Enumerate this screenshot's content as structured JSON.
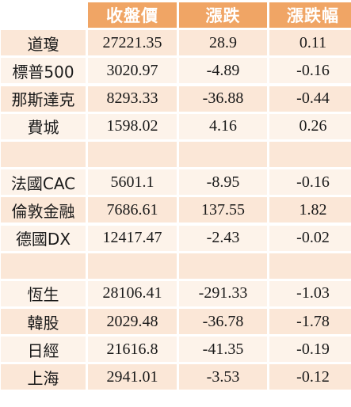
{
  "header": {
    "blank": "",
    "close": "收盤價",
    "change": "漲跌",
    "change_pct": "漲跌幅"
  },
  "rows": [
    {
      "name": "道瓊",
      "close": "27221.35",
      "change": "28.9",
      "pct": "0.11"
    },
    {
      "name": "標普500",
      "close": "3020.97",
      "change": "-4.89",
      "pct": "-0.16"
    },
    {
      "name": "那斯達克",
      "close": "8293.33",
      "change": "-36.88",
      "pct": "-0.44"
    },
    {
      "name": "費城",
      "close": "1598.02",
      "change": "4.16",
      "pct": "0.26"
    },
    {
      "name": "",
      "close": "",
      "change": "",
      "pct": ""
    },
    {
      "name": "法國CAC",
      "close": "5601.1",
      "change": "-8.95",
      "pct": "-0.16"
    },
    {
      "name": "倫敦金融",
      "close": "7686.61",
      "change": "137.55",
      "pct": "1.82"
    },
    {
      "name": "德國DX",
      "close": "12417.47",
      "change": "-2.43",
      "pct": "-0.02"
    },
    {
      "name": "",
      "close": "",
      "change": "",
      "pct": ""
    },
    {
      "name": "恆生",
      "close": "28106.41",
      "change": "-291.33",
      "pct": "-1.03"
    },
    {
      "name": "韓股",
      "close": "2029.48",
      "change": "-36.78",
      "pct": "-1.78"
    },
    {
      "name": "日經",
      "close": "21616.8",
      "change": "-41.35",
      "pct": "-0.19"
    },
    {
      "name": "上海",
      "close": "2941.01",
      "change": "-3.53",
      "pct": "-0.12"
    }
  ],
  "colors": {
    "header_bg": "#f0a565",
    "header_text": "#ffffff",
    "row_odd_bg": "#fbe7d7",
    "row_even_bg": "#fdf3ea"
  }
}
